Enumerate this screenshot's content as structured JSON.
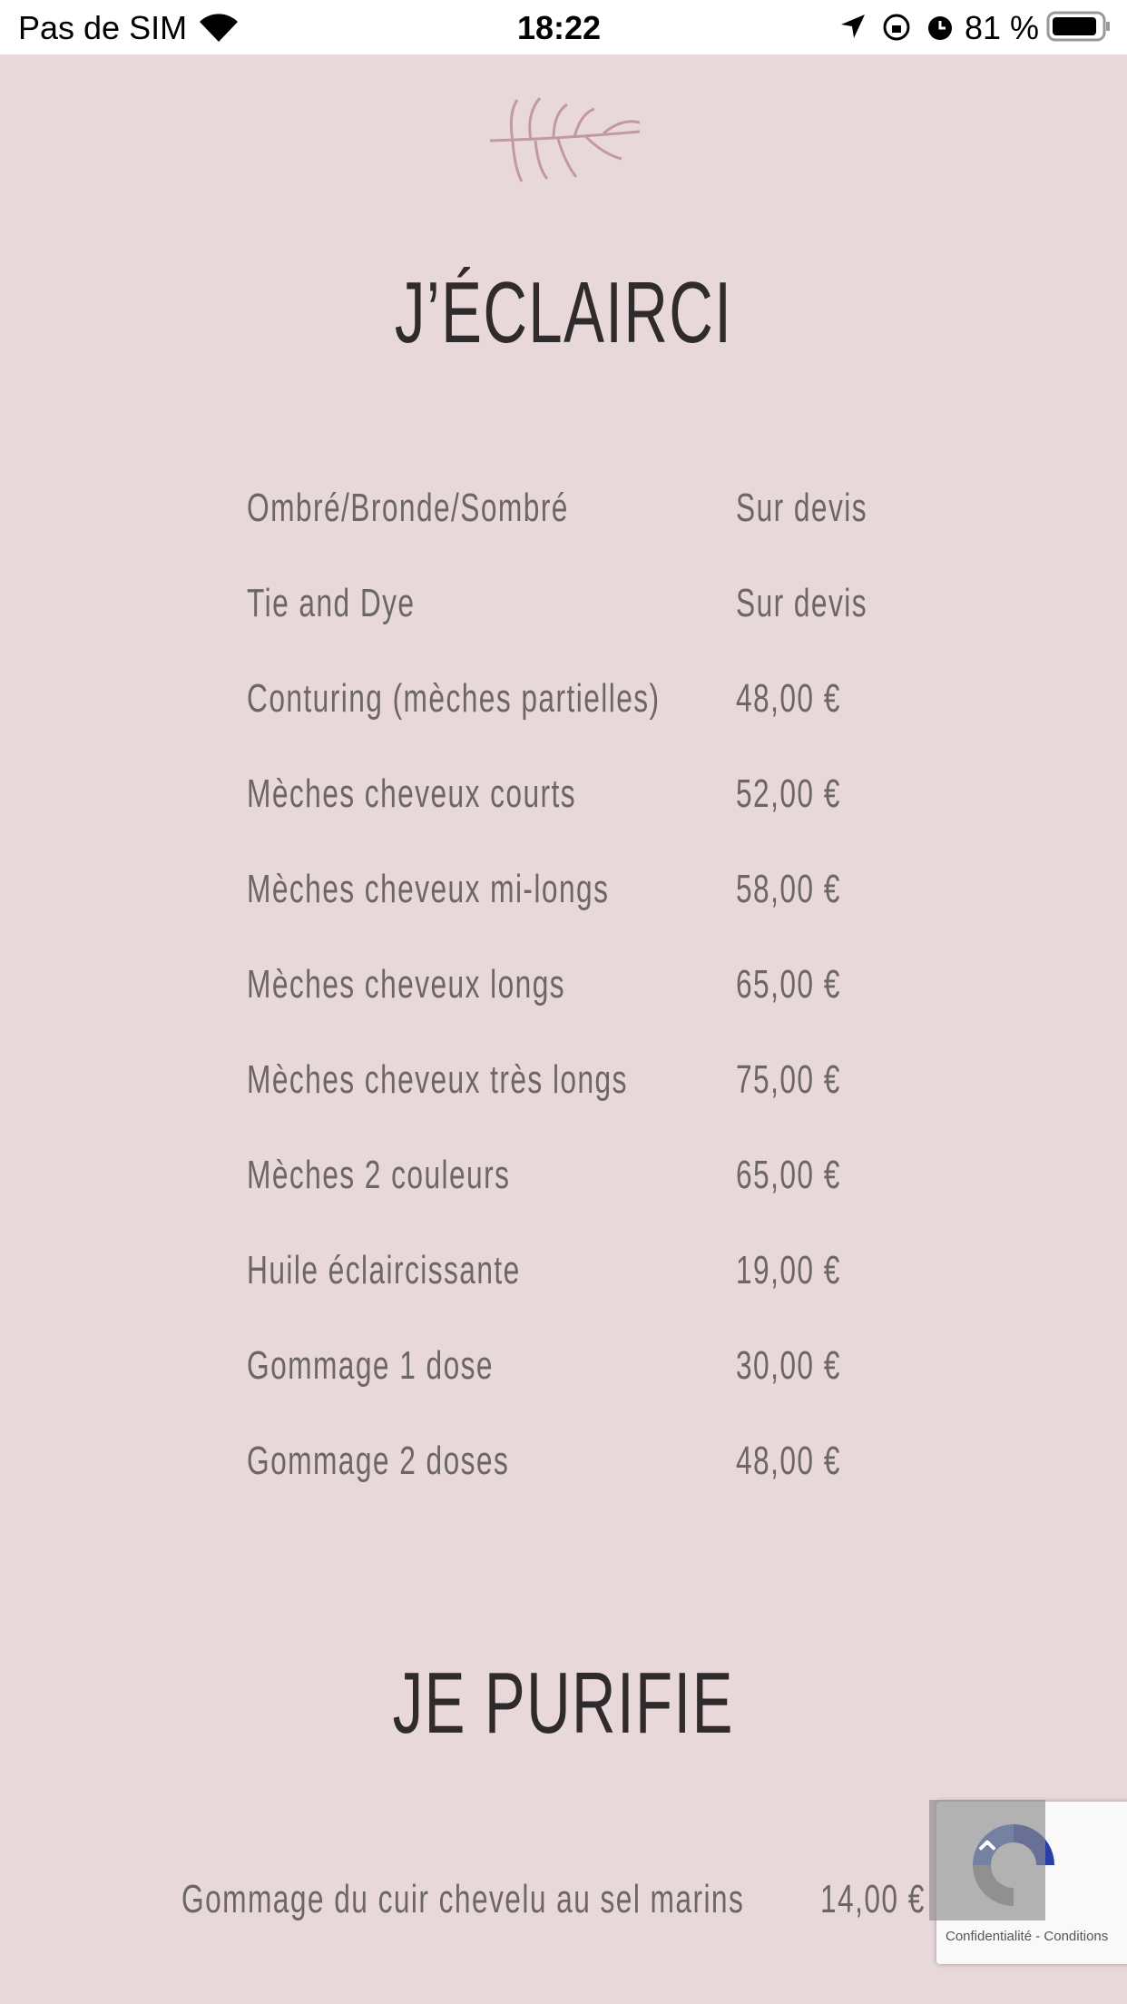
{
  "status_bar": {
    "carrier": "Pas de SIM",
    "time": "18:22",
    "battery": "81 %"
  },
  "sections": [
    {
      "title": "J’ÉCLAIRCI",
      "items": [
        {
          "name": "Ombré/Bronde/Sombré",
          "price": "Sur devis"
        },
        {
          "name": "Tie and Dye",
          "price": "Sur devis"
        },
        {
          "name": "Conturing (mèches partielles)",
          "price": "48,00 €"
        },
        {
          "name": "Mèches cheveux courts",
          "price": "52,00 €"
        },
        {
          "name": "Mèches cheveux mi-longs",
          "price": "58,00 €"
        },
        {
          "name": "Mèches cheveux longs",
          "price": "65,00 €"
        },
        {
          "name": "Mèches cheveux très longs",
          "price": "75,00 €"
        },
        {
          "name": "Mèches 2 couleurs",
          "price": "65,00 €"
        },
        {
          "name": "Huile éclaircissante",
          "price": "19,00 €"
        },
        {
          "name": "Gommage 1 dose",
          "price": "30,00 €"
        },
        {
          "name": "Gommage 2 doses",
          "price": "48,00 €"
        }
      ]
    },
    {
      "title": "JE PURIFIE",
      "items": [
        {
          "name": "Gommage du cuir chevelu au sel marins",
          "price": "14,00 €"
        }
      ]
    }
  ],
  "recaptcha": {
    "links": "Confidentialité - Conditions"
  },
  "colors": {
    "background": "#e8d8da",
    "text": "#6d6668",
    "title": "#2f2a2b",
    "leaf": "#b98a92"
  }
}
